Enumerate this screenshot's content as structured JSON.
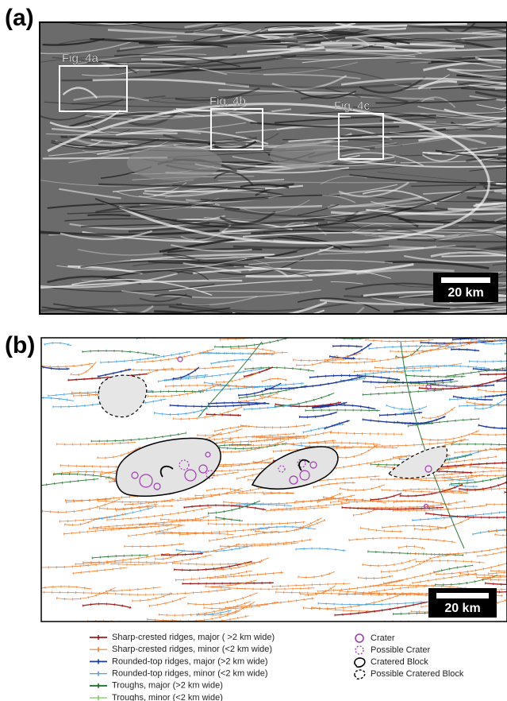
{
  "panels": [
    {
      "label": "(a)",
      "boxes": [
        {
          "label": "Fig. 4a"
        },
        {
          "label": "Fig. 4b"
        },
        {
          "label": "Fig. 4c"
        }
      ],
      "scale_bar": "20 km"
    },
    {
      "label": "(b)",
      "scale_bar": "20 km",
      "legend": {
        "lines": [
          "Sharp-crested ridges, major ( >2 km wide)",
          "Sharp-crested ridges, minor (<2 km wide)",
          "Rounded-top ridges, major (>2 km wide)",
          "Rounded-top ridges, minor (<2 km wide)",
          "Troughs, major (>2 km wide)",
          "Troughs, minor (<2 km wide)"
        ],
        "features": [
          "Crater",
          "Possible Crater",
          "Cratered Block",
          "Possible Cratered Block"
        ]
      }
    }
  ]
}
